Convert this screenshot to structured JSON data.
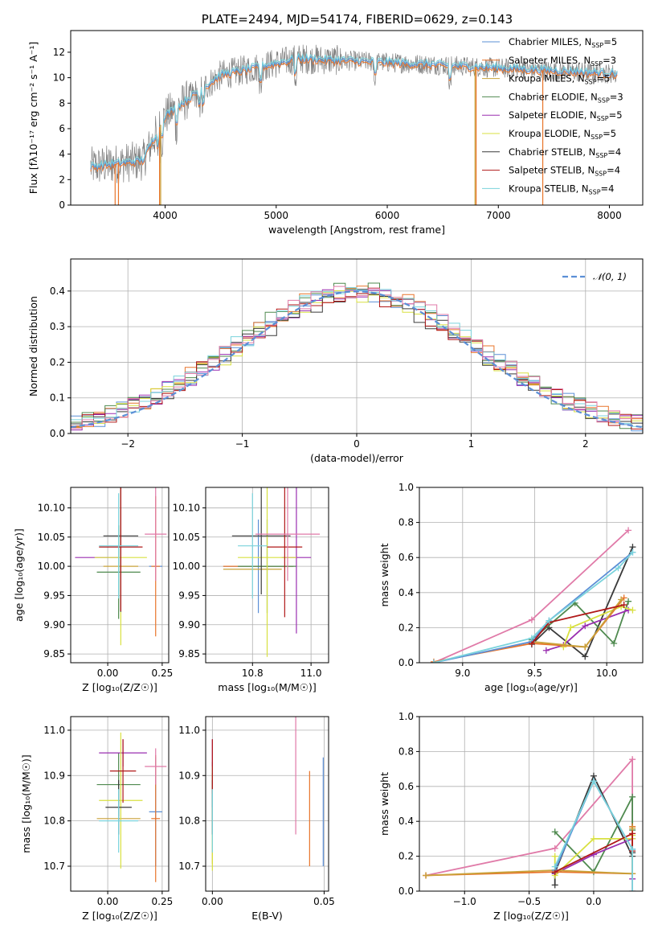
{
  "title": "PLATE=2494, MJD=54174, FIBERID=0629, z=0.143",
  "colors": {
    "c0": "#5b8fd6",
    "c1": "#e8742a",
    "c2": "#c8a23a",
    "c3": "#4f8a4f",
    "c4": "#9a2fb0",
    "c5": "#d8e040",
    "c6": "#3a3a3a",
    "c7": "#b01818",
    "c8": "#7ad3dc",
    "pink": "#e07aa8",
    "obs": "#808080"
  },
  "legend": [
    "Chabrier MILES, N_SSP=5",
    "Salpeter MILES, N_SSP=3",
    "Kroupa MILES, N_SSP=5",
    "Chabrier ELODIE, N_SSP=3",
    "Salpeter ELODIE, N_SSP=5",
    "Kroupa ELODIE, N_SSP=5",
    "Chabrier STELIB, N_SSP=4",
    "Salpeter STELIB, N_SSP=4",
    "Kroupa STELIB, N_SSP=4"
  ],
  "legend_display": [
    {
      "pre": "Chabrier MILES, N",
      "sub": "SSP",
      "post": "=5"
    },
    {
      "pre": "Salpeter MILES, N",
      "sub": "SSP",
      "post": "=3"
    },
    {
      "pre": "Kroupa MILES, N",
      "sub": "SSP",
      "post": "=5"
    },
    {
      "pre": "Chabrier ELODIE, N",
      "sub": "SSP",
      "post": "=3"
    },
    {
      "pre": "Salpeter ELODIE, N",
      "sub": "SSP",
      "post": "=5"
    },
    {
      "pre": "Kroupa ELODIE, N",
      "sub": "SSP",
      "post": "=5"
    },
    {
      "pre": "Chabrier STELIB, N",
      "sub": "SSP",
      "post": "=4"
    },
    {
      "pre": "Salpeter STELIB, N",
      "sub": "SSP",
      "post": "=4"
    },
    {
      "pre": "Kroupa STELIB, N",
      "sub": "SSP",
      "post": "=4"
    }
  ],
  "labels": {
    "spec_x": "wavelength [Angstrom, rest frame]",
    "spec_y": "Flux [fλ10⁻¹⁷ erg cm⁻² s⁻¹ A⁻¹]",
    "hist_x": "(data-model)/error",
    "hist_y": "Normed distribution",
    "hist_legend": "𝒩(0, 1)",
    "z_x": "Z [log₁₀(Z/Z☉)]",
    "age_y": "age  [log₁₀(age/yr)]",
    "mass_x": "mass [log₁₀(M/M☉)]",
    "mass_y": "mass [log₁₀(M/M☉)]",
    "ebv_x": "E(B-V)",
    "age_x": "age  [log₁₀(age/yr)]",
    "mw_y": "mass weight"
  },
  "chart_data": [
    {
      "id": "spectrum",
      "type": "line",
      "xlim": [
        3150,
        8300
      ],
      "ylim": [
        0,
        13.7
      ],
      "xticks": [
        4000,
        5000,
        6000,
        7000,
        8000
      ],
      "yticks": [
        0,
        2,
        4,
        6,
        8,
        10,
        12
      ],
      "x_range_data": [
        3330,
        8070
      ],
      "grid": false,
      "legend": "top-right",
      "note_series": "observed spectrum and 9 SSP model fits"
    },
    {
      "id": "residuals",
      "type": "line",
      "xlim": [
        -2.5,
        2.5
      ],
      "ylim": [
        0,
        0.49
      ],
      "xticks": [
        -2,
        -1,
        0,
        1,
        2
      ],
      "yticks": [
        0.0,
        0.1,
        0.2,
        0.3,
        0.4
      ],
      "grid": true,
      "legend": "top-right",
      "gaussian": {
        "mean": 0,
        "sigma": 1
      },
      "bin_width": 0.1
    },
    {
      "id": "age_vs_Z",
      "type": "scatter",
      "xlim": [
        -0.17,
        0.28
      ],
      "ylim": [
        9.835,
        10.135
      ],
      "xticks": [
        0.0,
        0.25
      ],
      "yticks": [
        9.85,
        9.9,
        9.95,
        10.0,
        10.05,
        10.1
      ],
      "grid": true,
      "points": [
        {
          "c": "c0",
          "x": 0.22,
          "xe": 0.03,
          "y": 10.0,
          "ye": 0.0
        },
        {
          "c": "c1",
          "x": 0.22,
          "xe": 0.02,
          "y": 10.0,
          "ye": 0.12
        },
        {
          "c": "c2",
          "x": 0.06,
          "xe": 0.08,
          "y": 10.0,
          "ye": 0.0
        },
        {
          "c": "c3",
          "x": 0.05,
          "xe": 0.1,
          "y": 9.99,
          "ye": 0.08
        },
        {
          "c": "c4",
          "x": -0.05,
          "xe": 0.1,
          "y": 10.015,
          "ye": 0.0
        },
        {
          "c": "c5",
          "x": 0.06,
          "xe": 0.12,
          "y": 10.015,
          "ye": 0.15
        },
        {
          "c": "c6",
          "x": 0.06,
          "xe": 0.08,
          "y": 10.052,
          "ye": 0.13
        },
        {
          "c": "c7",
          "x": 0.06,
          "xe": 0.1,
          "y": 10.033,
          "ye": 0.11
        },
        {
          "c": "c8",
          "x": 0.05,
          "xe": 0.09,
          "y": 10.035,
          "ye": 0.09
        },
        {
          "c": "pink",
          "x": 0.22,
          "xe": 0.05,
          "y": 10.055,
          "ye": 0.08
        }
      ]
    },
    {
      "id": "age_vs_mass",
      "type": "scatter",
      "xlim": [
        10.64,
        11.06
      ],
      "ylim": [
        9.835,
        10.135
      ],
      "xticks": [
        10.8,
        11.0
      ],
      "yticks": [
        9.85,
        9.9,
        9.95,
        10.0,
        10.05,
        10.1
      ],
      "grid": true,
      "points": [
        {
          "c": "c0",
          "x": 10.82,
          "xe": 0.12,
          "y": 10.0,
          "ye": 0.08
        },
        {
          "c": "c1",
          "x": 10.82,
          "xe": 0.12,
          "y": 10.0,
          "ye": 0.0
        },
        {
          "c": "c2",
          "x": 10.8,
          "xe": 0.1,
          "y": 9.995,
          "ye": 0.0
        },
        {
          "c": "c3",
          "x": 10.85,
          "xe": 0.1,
          "y": 10.0,
          "ye": 0.08
        },
        {
          "c": "c4",
          "x": 10.95,
          "xe": 0.05,
          "y": 10.015,
          "ye": 0.13
        },
        {
          "c": "c5",
          "x": 10.85,
          "xe": 0.1,
          "y": 10.015,
          "ye": 0.17
        },
        {
          "c": "c6",
          "x": 10.83,
          "xe": 0.1,
          "y": 10.052,
          "ye": 0.1
        },
        {
          "c": "c7",
          "x": 10.91,
          "xe": 0.06,
          "y": 10.033,
          "ye": 0.12
        },
        {
          "c": "c8",
          "x": 10.8,
          "xe": 0.05,
          "y": 10.035,
          "ye": 0.09
        },
        {
          "c": "pink",
          "x": 10.92,
          "xe": 0.11,
          "y": 10.055,
          "ye": 0.08
        }
      ]
    },
    {
      "id": "mass_vs_Z",
      "type": "scatter",
      "xlim": [
        -0.17,
        0.28
      ],
      "ylim": [
        10.645,
        11.03
      ],
      "xticks": [
        0.0,
        0.25
      ],
      "yticks": [
        10.7,
        10.8,
        10.9,
        11.0
      ],
      "grid": true,
      "points": [
        {
          "c": "c0",
          "x": 0.22,
          "xe": 0.03,
          "y": 10.82,
          "ye": 0.12
        },
        {
          "c": "c1",
          "x": 0.22,
          "xe": 0.02,
          "y": 10.805,
          "ye": 0.14
        },
        {
          "c": "c2",
          "x": 0.05,
          "xe": 0.1,
          "y": 10.805,
          "ye": 0.0
        },
        {
          "c": "c3",
          "x": 0.05,
          "xe": 0.1,
          "y": 10.88,
          "ye": 0.07
        },
        {
          "c": "c4",
          "x": 0.07,
          "xe": 0.11,
          "y": 10.95,
          "ye": 0.03
        },
        {
          "c": "c5",
          "x": 0.06,
          "xe": 0.1,
          "y": 10.845,
          "ye": 0.15
        },
        {
          "c": "c6",
          "x": 0.05,
          "xe": 0.06,
          "y": 10.83,
          "ye": 0.06
        },
        {
          "c": "c7",
          "x": 0.07,
          "xe": 0.06,
          "y": 10.91,
          "ye": 0.07
        },
        {
          "c": "c8",
          "x": 0.05,
          "xe": 0.09,
          "y": 10.8,
          "ye": 0.07
        },
        {
          "c": "pink",
          "x": 0.22,
          "xe": 0.05,
          "y": 10.92,
          "ye": 0.04
        }
      ]
    },
    {
      "id": "mass_vs_EBV",
      "type": "scatter",
      "xlim": [
        -0.003,
        0.052
      ],
      "ylim": [
        10.645,
        11.03
      ],
      "xticks": [
        0.0,
        0.05
      ],
      "yticks": [
        10.7,
        10.8,
        10.9,
        11.0
      ],
      "grid": true,
      "points": [
        {
          "c": "c0",
          "x": 0.0496,
          "y": 10.82,
          "ye": 0.12
        },
        {
          "c": "c1",
          "x": 0.0435,
          "y": 10.805,
          "ye": 0.105
        },
        {
          "c": "c2",
          "x": 0.0,
          "y": 10.805,
          "ye": 0.1
        },
        {
          "c": "c3",
          "x": 0.0,
          "y": 10.88,
          "ye": 0.05
        },
        {
          "c": "c4",
          "x": 0.0,
          "y": 10.95,
          "ye": 0.03
        },
        {
          "c": "c5",
          "x": 0.0,
          "y": 10.76,
          "ye": 0.07
        },
        {
          "c": "c6",
          "x": 0.0,
          "y": 10.83,
          "ye": 0.06
        },
        {
          "c": "c7",
          "x": 0.0,
          "y": 10.92,
          "ye": 0.06
        },
        {
          "c": "c8",
          "x": 0.0,
          "y": 10.8,
          "ye": 0.07
        },
        {
          "c": "pink",
          "x": 0.0373,
          "y": 10.94,
          "ye": 0.17
        }
      ]
    },
    {
      "id": "mass_weight_vs_age",
      "type": "line",
      "xlim": [
        8.7,
        10.25
      ],
      "ylim": [
        0,
        1.0
      ],
      "xticks": [
        9.0,
        9.5,
        10.0
      ],
      "yticks": [
        0.0,
        0.2,
        0.4,
        0.6,
        0.8,
        1.0
      ],
      "grid": true,
      "series": [
        {
          "c": "pink",
          "x": [
            8.8,
            9.48,
            10.15
          ],
          "y": [
            0.0,
            0.245,
            0.755
          ]
        },
        {
          "c": "c6",
          "x": [
            9.48,
            9.6,
            9.85,
            10.18
          ],
          "y": [
            0.105,
            0.2,
            0.035,
            0.66
          ]
        },
        {
          "c": "c3",
          "x": [
            9.48,
            9.78,
            10.05,
            10.15
          ],
          "y": [
            0.13,
            0.34,
            0.11,
            0.35
          ]
        },
        {
          "c": "c4",
          "x": [
            9.58,
            9.7,
            9.85,
            10.15
          ],
          "y": [
            0.07,
            0.1,
            0.21,
            0.3
          ]
        },
        {
          "c": "c5",
          "x": [
            9.7,
            9.75,
            10.1,
            10.18
          ],
          "y": [
            0.09,
            0.2,
            0.32,
            0.3
          ]
        },
        {
          "c": "c1",
          "x": [
            8.8,
            9.48,
            9.85,
            10.12
          ],
          "y": [
            0.005,
            0.11,
            0.09,
            0.37
          ]
        },
        {
          "c": "c2",
          "x": [
            9.48,
            9.85,
            10.1
          ],
          "y": [
            0.12,
            0.09,
            0.36
          ]
        },
        {
          "c": "c0",
          "x": [
            8.8,
            9.48,
            9.6,
            10.18
          ],
          "y": [
            0.0,
            0.12,
            0.24,
            0.63
          ]
        },
        {
          "c": "c7",
          "x": [
            9.48,
            9.6,
            10.12
          ],
          "y": [
            0.11,
            0.23,
            0.33
          ]
        },
        {
          "c": "c8",
          "x": [
            8.8,
            9.48,
            9.6,
            10.08,
            10.18
          ],
          "y": [
            0.0,
            0.14,
            0.24,
            0.54,
            0.63
          ]
        }
      ]
    },
    {
      "id": "mass_weight_vs_Z",
      "type": "line",
      "xlim": [
        -1.35,
        0.38
      ],
      "ylim": [
        0,
        1.0
      ],
      "xticks": [
        -1.0,
        -0.5,
        0.0
      ],
      "yticks": [
        0.0,
        0.2,
        0.4,
        0.6,
        0.8,
        1.0
      ],
      "grid": true,
      "series": [
        {
          "c": "pink",
          "x": [
            -1.3,
            -0.3,
            0.3,
            0.3
          ],
          "y": [
            0.09,
            0.245,
            0.755,
            0.0
          ]
        },
        {
          "c": "c6",
          "x": [
            -0.3,
            -0.3,
            0.0,
            0.3,
            0.3
          ],
          "y": [
            0.035,
            0.105,
            0.66,
            0.2,
            0.22
          ]
        },
        {
          "c": "c3",
          "x": [
            -0.3,
            0.0,
            0.3,
            0.3
          ],
          "y": [
            0.34,
            0.11,
            0.54,
            0.35
          ]
        },
        {
          "c": "c4",
          "x": [
            -0.3,
            0.0,
            0.3,
            0.3
          ],
          "y": [
            0.1,
            0.21,
            0.3,
            0.07
          ]
        },
        {
          "c": "c5",
          "x": [
            -0.3,
            -0.3,
            0.0,
            0.3,
            0.3
          ],
          "y": [
            0.2,
            0.09,
            0.3,
            0.3,
            0.32
          ]
        },
        {
          "c": "c1",
          "x": [
            -1.3,
            -0.3,
            0.3,
            0.3
          ],
          "y": [
            0.09,
            0.11,
            0.1,
            0.37
          ]
        },
        {
          "c": "c2",
          "x": [
            -1.3,
            -0.3,
            0.3,
            0.3
          ],
          "y": [
            0.09,
            0.12,
            0.1,
            0.36
          ]
        },
        {
          "c": "c0",
          "x": [
            -0.3,
            0.0,
            0.3
          ],
          "y": [
            0.12,
            0.63,
            0.24
          ]
        },
        {
          "c": "c7",
          "x": [
            -0.3,
            0.3,
            0.3
          ],
          "y": [
            0.11,
            0.33,
            0.23
          ]
        },
        {
          "c": "c8",
          "x": [
            -0.3,
            0.0,
            0.3,
            0.3
          ],
          "y": [
            0.14,
            0.63,
            0.24,
            0.0
          ]
        }
      ]
    }
  ]
}
